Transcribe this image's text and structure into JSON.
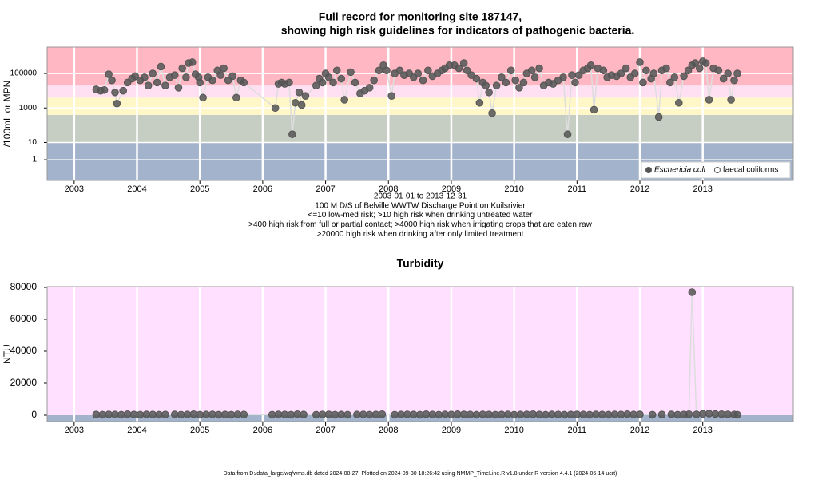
{
  "chart_data": [
    {
      "type": "scatter",
      "title": [
        "Full record for monitoring site 187147,",
        "showing high risk guidelines for indicators of pathogenic bacteria."
      ],
      "y_label": "/100mL or MPN",
      "notes": [
        "2003-01-01 to 2013-12-31",
        "100 M D/S of Belville WWTW Discharge Point on Kuilsrivier",
        "<=10 low-med risk; >10 high risk when drinking untreated water",
        ">400 high risk from full or partial contact; >4000 high risk when irrigating crops that are eaten raw",
        ">20000 high risk when drinking after only limited treatment"
      ],
      "log_y": true,
      "xlim": [
        2002.57,
        2014.44
      ],
      "xticks": [
        2003,
        2004,
        2005,
        2006,
        2007,
        2008,
        2009,
        2010,
        2011,
        2012,
        2013
      ],
      "ylim": [
        0.063,
        3400000
      ],
      "yticks": [
        1,
        10,
        1000,
        100000
      ],
      "grid": "both",
      "legend": "bottom-right",
      "bands": [
        {
          "from": null,
          "to": 10,
          "color": "#a3b3cb"
        },
        {
          "from": 10,
          "to": 400,
          "color": "#c6cec3"
        },
        {
          "from": 400,
          "to": 4000,
          "color": "#fff7c8"
        },
        {
          "from": 4000,
          "to": 20000,
          "color": "#ffe0f2"
        },
        {
          "from": 20000,
          "to": null,
          "color": "#ffb8c3"
        }
      ],
      "series": [
        {
          "name": "Eschericia coli",
          "color": "#555555",
          "marker": "filled",
          "x": [
            2003.35,
            2003.42,
            2003.48,
            2003.55,
            2003.6,
            2003.65,
            2003.68,
            2003.78,
            2003.85,
            2003.92,
            2003.97,
            2004.05,
            2004.12,
            2004.18,
            2004.25,
            2004.32,
            2004.38,
            2004.45,
            2004.52,
            2004.6,
            2004.66,
            2004.72,
            2004.78,
            2004.82,
            2004.88,
            2004.93,
            2004.98,
            2005.0,
            2005.05,
            2005.13,
            2005.2,
            2005.28,
            2005.33,
            2005.38,
            2005.45,
            2005.52,
            2005.58,
            2005.65,
            2005.7,
            2006.2,
            2006.25,
            2006.3,
            2006.35,
            2006.42,
            2006.47,
            2006.52,
            2006.58,
            2006.62,
            2006.68,
            2006.85,
            2006.9,
            2006.95,
            2007.0,
            2007.05,
            2007.12,
            2007.18,
            2007.25,
            2007.3,
            2007.4,
            2007.47,
            2007.55,
            2007.62,
            2007.7,
            2007.77,
            2007.85,
            2007.92,
            2007.97,
            2008.05,
            2008.1,
            2008.18,
            2008.25,
            2008.33,
            2008.4,
            2008.47,
            2008.55,
            2008.63,
            2008.7,
            2008.78,
            2008.85,
            2008.9,
            2008.97,
            2009.05,
            2009.12,
            2009.2,
            2009.25,
            2009.32,
            2009.4,
            2009.45,
            2009.5,
            2009.55,
            2009.6,
            2009.65,
            2009.72,
            2009.8,
            2009.87,
            2009.95,
            2010.02,
            2010.08,
            2010.15,
            2010.2,
            2010.28,
            2010.33,
            2010.4,
            2010.47,
            2010.55,
            2010.62,
            2010.7,
            2010.78,
            2010.85,
            2010.92,
            2010.97,
            2011.03,
            2011.1,
            2011.17,
            2011.22,
            2011.27,
            2011.33,
            2011.42,
            2011.48,
            2011.55,
            2011.63,
            2011.7,
            2011.78,
            2011.85,
            2011.92,
            2012.0,
            2012.05,
            2012.1,
            2012.18,
            2012.22,
            2012.3,
            2012.35,
            2012.42,
            2012.48,
            2012.55,
            2012.62,
            2012.7,
            2012.77,
            2012.83,
            2012.88,
            2012.95,
            2013.0,
            2013.05,
            2013.1,
            2013.17,
            2013.25,
            2013.33,
            2013.4,
            2013.45,
            2013.5,
            2013.55
          ],
          "values": [
            12000,
            10000,
            11000,
            90000,
            40000,
            8000,
            1800,
            10000,
            30000,
            50000,
            70000,
            40000,
            60000,
            20000,
            100000,
            30000,
            250000,
            20000,
            60000,
            80000,
            15000,
            200000,
            60000,
            400000,
            450000,
            90000,
            60000,
            30000,
            4000,
            60000,
            40000,
            150000,
            80000,
            200000,
            40000,
            70000,
            4000,
            40000,
            30000,
            1000,
            25000,
            30000,
            25000,
            30000,
            30,
            2000,
            8000,
            1500,
            5000,
            20000,
            50000,
            30000,
            100000,
            60000,
            30000,
            150000,
            50000,
            3000,
            120000,
            30000,
            7000,
            10000,
            15000,
            40000,
            150000,
            300000,
            150000,
            5000,
            100000,
            150000,
            80000,
            100000,
            60000,
            100000,
            40000,
            150000,
            70000,
            100000,
            150000,
            200000,
            300000,
            300000,
            200000,
            400000,
            150000,
            80000,
            50000,
            2000,
            30000,
            20000,
            8000,
            500,
            20000,
            60000,
            30000,
            150000,
            40000,
            15000,
            30000,
            100000,
            150000,
            60000,
            200000,
            20000,
            30000,
            25000,
            40000,
            60000,
            30,
            80000,
            30000,
            80000,
            150000,
            200000,
            300000,
            800,
            200000,
            150000,
            60000,
            80000,
            70000,
            100000,
            200000,
            60000,
            100000,
            450000,
            30000,
            150000,
            50000,
            100000,
            300,
            150000,
            200000,
            30000,
            60000,
            2000,
            70000,
            150000,
            300000,
            400000,
            200000,
            500000,
            400000,
            3000,
            200000,
            150000,
            50000,
            100000,
            3000,
            40000,
            100000
          ]
        },
        {
          "name": "faecal coliforms",
          "color": "#555555",
          "marker": "open",
          "x": [],
          "values": []
        }
      ]
    },
    {
      "type": "scatter",
      "title": "Turbidity",
      "y_label": "NTU",
      "log_y": false,
      "xlim": [
        2002.57,
        2014.44
      ],
      "xticks": [
        2003,
        2004,
        2005,
        2006,
        2007,
        2008,
        2009,
        2010,
        2011,
        2012,
        2013
      ],
      "ylim": [
        -4000,
        80500
      ],
      "yticks": [
        0,
        20000,
        40000,
        60000,
        80000
      ],
      "grid": "x",
      "bands": [
        {
          "from": null,
          "to": 0,
          "color": "#a3b3cb"
        },
        {
          "from": 0,
          "to": null,
          "color": "#ffe0ff"
        }
      ],
      "series": [
        {
          "name": "Turbidity",
          "color": "#555555",
          "marker": "filled",
          "x": [
            2003.35,
            2003.45,
            2003.55,
            2003.65,
            2003.75,
            2003.85,
            2003.95,
            2004.05,
            2004.15,
            2004.25,
            2004.35,
            2004.45,
            2004.6,
            2004.7,
            2004.8,
            2004.9,
            2005.0,
            2005.1,
            2005.2,
            2005.3,
            2005.4,
            2005.5,
            2005.6,
            2005.7,
            2006.15,
            2006.25,
            2006.35,
            2006.45,
            2006.55,
            2006.65,
            2006.85,
            2006.95,
            2007.05,
            2007.15,
            2007.25,
            2007.35,
            2007.5,
            2007.6,
            2007.7,
            2007.8,
            2007.9,
            2008.1,
            2008.2,
            2008.3,
            2008.4,
            2008.5,
            2008.6,
            2008.7,
            2008.8,
            2008.9,
            2009.0,
            2009.1,
            2009.2,
            2009.3,
            2009.4,
            2009.5,
            2009.6,
            2009.7,
            2009.8,
            2009.9,
            2010.0,
            2010.1,
            2010.2,
            2010.3,
            2010.4,
            2010.5,
            2010.6,
            2010.7,
            2010.8,
            2010.9,
            2011.0,
            2011.1,
            2011.2,
            2011.3,
            2011.4,
            2011.5,
            2011.6,
            2011.7,
            2011.8,
            2011.9,
            2012.0,
            2012.2,
            2012.35,
            2012.5,
            2012.6,
            2012.7,
            2012.78,
            2012.83,
            2012.9,
            2013.0,
            2013.1,
            2013.2,
            2013.3,
            2013.4,
            2013.5,
            2013.55
          ],
          "values": [
            400,
            300,
            500,
            400,
            300,
            600,
            400,
            300,
            500,
            400,
            300,
            400,
            500,
            300,
            400,
            600,
            300,
            400,
            500,
            300,
            400,
            300,
            500,
            400,
            300,
            500,
            400,
            300,
            600,
            400,
            300,
            400,
            500,
            300,
            400,
            300,
            400,
            500,
            300,
            400,
            600,
            300,
            400,
            500,
            400,
            300,
            600,
            400,
            300,
            500,
            400,
            600,
            500,
            400,
            300,
            500,
            400,
            300,
            400,
            500,
            300,
            400,
            500,
            600,
            400,
            300,
            500,
            400,
            300,
            400,
            500,
            400,
            300,
            500,
            400,
            300,
            500,
            400,
            600,
            400,
            500,
            300,
            400,
            500,
            300,
            400,
            600,
            77000,
            500,
            800,
            1000,
            700,
            600,
            500,
            400,
            300
          ]
        }
      ]
    }
  ],
  "footer": "Data from D:/data_large/wq/wms.db dated 2024-08-27. Plotted on 2024-09-30 18:26:42 using NMMP_TimeLine.R v1.8 under R version 4.4.1 (2024-06-14 ucrt)"
}
